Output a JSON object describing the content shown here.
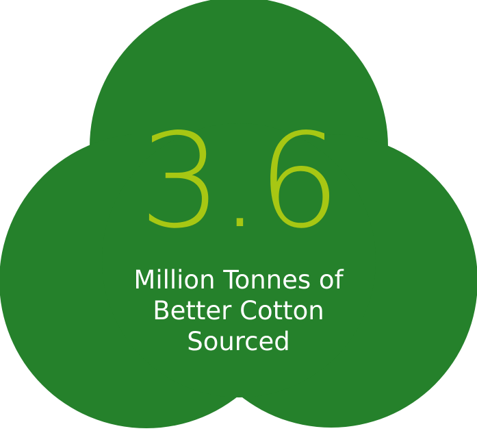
{
  "stat": {
    "value": "3.6",
    "caption": "Million Tonnes of\nBetter Cotton\nSourced"
  },
  "colors": {
    "shape_fill": "#25812b",
    "value_color": "#a7c713",
    "caption_color": "#ffffff",
    "background": "#ffffff"
  },
  "shape_icon": "cotton-boll-trefoil"
}
